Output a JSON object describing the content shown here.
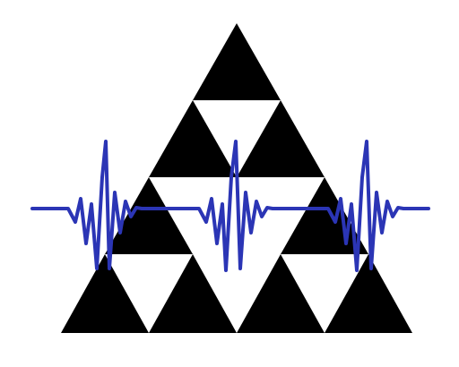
{
  "figure": {
    "subject": "sierpinski-triangle-logo",
    "colors": {
      "background": "#ffffff",
      "triangle_fill": "#000000",
      "wave_stroke": "#2b35b5"
    }
  }
}
